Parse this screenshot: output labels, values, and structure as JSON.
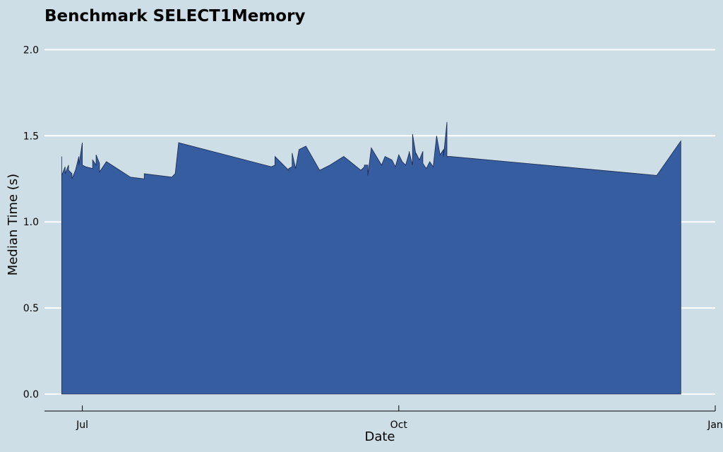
{
  "chart_data": {
    "type": "area",
    "title": "Benchmark SELECT1Memory",
    "xlabel": "Date",
    "ylabel": "Median Time (s)",
    "xlim": [
      "2023-06-20",
      "2024-01-01"
    ],
    "ylim": [
      0,
      2.1
    ],
    "yticks": [
      "0.0",
      "0.5",
      "1.0",
      "1.5",
      "2.0"
    ],
    "xticks": [
      {
        "date": "2023-07-01",
        "label": "Jul"
      },
      {
        "date": "2023-10-01",
        "label": "Oct"
      },
      {
        "date": "2024-01-01",
        "label": "Jan"
      }
    ],
    "grid": true,
    "fill_color": "#365da0",
    "line_color": "#1b2a4e",
    "series": [
      {
        "x": [
          "2023-06-25",
          "2023-06-25",
          "2023-06-26",
          "2023-06-26",
          "2023-06-27",
          "2023-06-27",
          "2023-06-28",
          "2023-06-28",
          "2023-06-29",
          "2023-06-30",
          "2023-06-30",
          "2023-07-01",
          "2023-07-01",
          "2023-07-02",
          "2023-07-04",
          "2023-07-04",
          "2023-07-05",
          "2023-07-05",
          "2023-07-06",
          "2023-07-06",
          "2023-07-08",
          "2023-07-15",
          "2023-07-19",
          "2023-07-19",
          "2023-07-27",
          "2023-07-28",
          "2023-07-29",
          "2023-08-25",
          "2023-08-26",
          "2023-08-26",
          "2023-08-30",
          "2023-08-30",
          "2023-08-31",
          "2023-08-31",
          "2023-09-01",
          "2023-09-02",
          "2023-09-04",
          "2023-09-08",
          "2023-09-11",
          "2023-09-15",
          "2023-09-20",
          "2023-09-20",
          "2023-09-21",
          "2023-09-21",
          "2023-09-22",
          "2023-09-22",
          "2023-09-23",
          "2023-09-26",
          "2023-09-27",
          "2023-09-29",
          "2023-09-30",
          "2023-10-01",
          "2023-10-02",
          "2023-10-03",
          "2023-10-04",
          "2023-10-04",
          "2023-10-05",
          "2023-10-05",
          "2023-10-06",
          "2023-10-06",
          "2023-10-07",
          "2023-10-08",
          "2023-10-08",
          "2023-10-09",
          "2023-10-10",
          "2023-10-11",
          "2023-10-12",
          "2023-10-13",
          "2023-10-14",
          "2023-10-14",
          "2023-10-15",
          "2023-10-15",
          "2023-10-16",
          "2023-12-15",
          "2023-12-22"
        ],
        "y": [
          1.38,
          1.27,
          1.32,
          1.28,
          1.33,
          1.3,
          1.28,
          1.25,
          1.3,
          1.38,
          1.33,
          1.46,
          1.33,
          1.32,
          1.31,
          1.36,
          1.33,
          1.39,
          1.34,
          1.29,
          1.35,
          1.26,
          1.25,
          1.28,
          1.26,
          1.28,
          1.46,
          1.32,
          1.33,
          1.38,
          1.3,
          1.31,
          1.32,
          1.4,
          1.31,
          1.42,
          1.44,
          1.3,
          1.33,
          1.38,
          1.3,
          1.3,
          1.32,
          1.33,
          1.33,
          1.27,
          1.43,
          1.33,
          1.38,
          1.36,
          1.32,
          1.39,
          1.35,
          1.33,
          1.4,
          1.41,
          1.33,
          1.51,
          1.39,
          1.4,
          1.36,
          1.41,
          1.34,
          1.31,
          1.35,
          1.32,
          1.5,
          1.39,
          1.42,
          1.38,
          1.58,
          1.38,
          1.38,
          1.27,
          1.47
        ]
      }
    ]
  }
}
